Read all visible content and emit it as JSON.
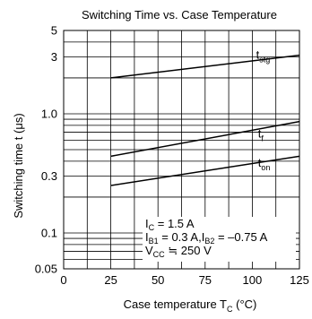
{
  "chart_data": {
    "type": "line",
    "title": "Switching Time vs. Case Temperature",
    "xlabel": {
      "main": "Case temperature  T",
      "sub": "C",
      "unit": " (°C)"
    },
    "ylabel": "Switching time  t  (μs)",
    "xlim": [
      0,
      125
    ],
    "ylim": [
      0.05,
      5
    ],
    "yscale": "log",
    "grid": true,
    "x_ticks": [
      {
        "value": 0,
        "label": "0"
      },
      {
        "value": 25,
        "label": "25"
      },
      {
        "value": 50,
        "label": "50"
      },
      {
        "value": 75,
        "label": "75"
      },
      {
        "value": 100,
        "label": "100"
      },
      {
        "value": 125,
        "label": "125"
      }
    ],
    "y_ticks": [
      {
        "value": 0.05,
        "label": "0.05"
      },
      {
        "value": 0.1,
        "label": "0.1"
      },
      {
        "value": 0.3,
        "label": "0.3"
      },
      {
        "value": 1.0,
        "label": "1.0"
      },
      {
        "value": 3,
        "label": "3"
      },
      {
        "value": 5,
        "label": "5"
      }
    ],
    "series": [
      {
        "name": "t",
        "sub": "stg",
        "x": [
          25,
          125
        ],
        "y": [
          2.0,
          3.1
        ],
        "label_at": [
          102,
          2.9
        ]
      },
      {
        "name": "t",
        "sub": "f",
        "x": [
          25,
          125
        ],
        "y": [
          0.44,
          0.86
        ],
        "label_at": [
          103,
          0.63
        ]
      },
      {
        "name": "t",
        "sub": "on",
        "x": [
          25,
          125
        ],
        "y": [
          0.25,
          0.44
        ],
        "label_at": [
          103,
          0.36
        ]
      }
    ],
    "annotations": [
      {
        "parts": [
          [
            "I",
            ""
          ],
          [
            "C",
            "sub"
          ],
          [
            " = 1.5 A",
            ""
          ]
        ]
      },
      {
        "parts": [
          [
            "I",
            ""
          ],
          [
            "B1",
            "sub"
          ],
          [
            " = 0.3 A,I",
            ""
          ],
          [
            "B2",
            "sub"
          ],
          [
            " = –0.75 A",
            ""
          ]
        ]
      },
      {
        "parts": [
          [
            "V",
            ""
          ],
          [
            "CC",
            "sub"
          ],
          [
            " ≒ 250 V",
            ""
          ]
        ]
      }
    ]
  }
}
